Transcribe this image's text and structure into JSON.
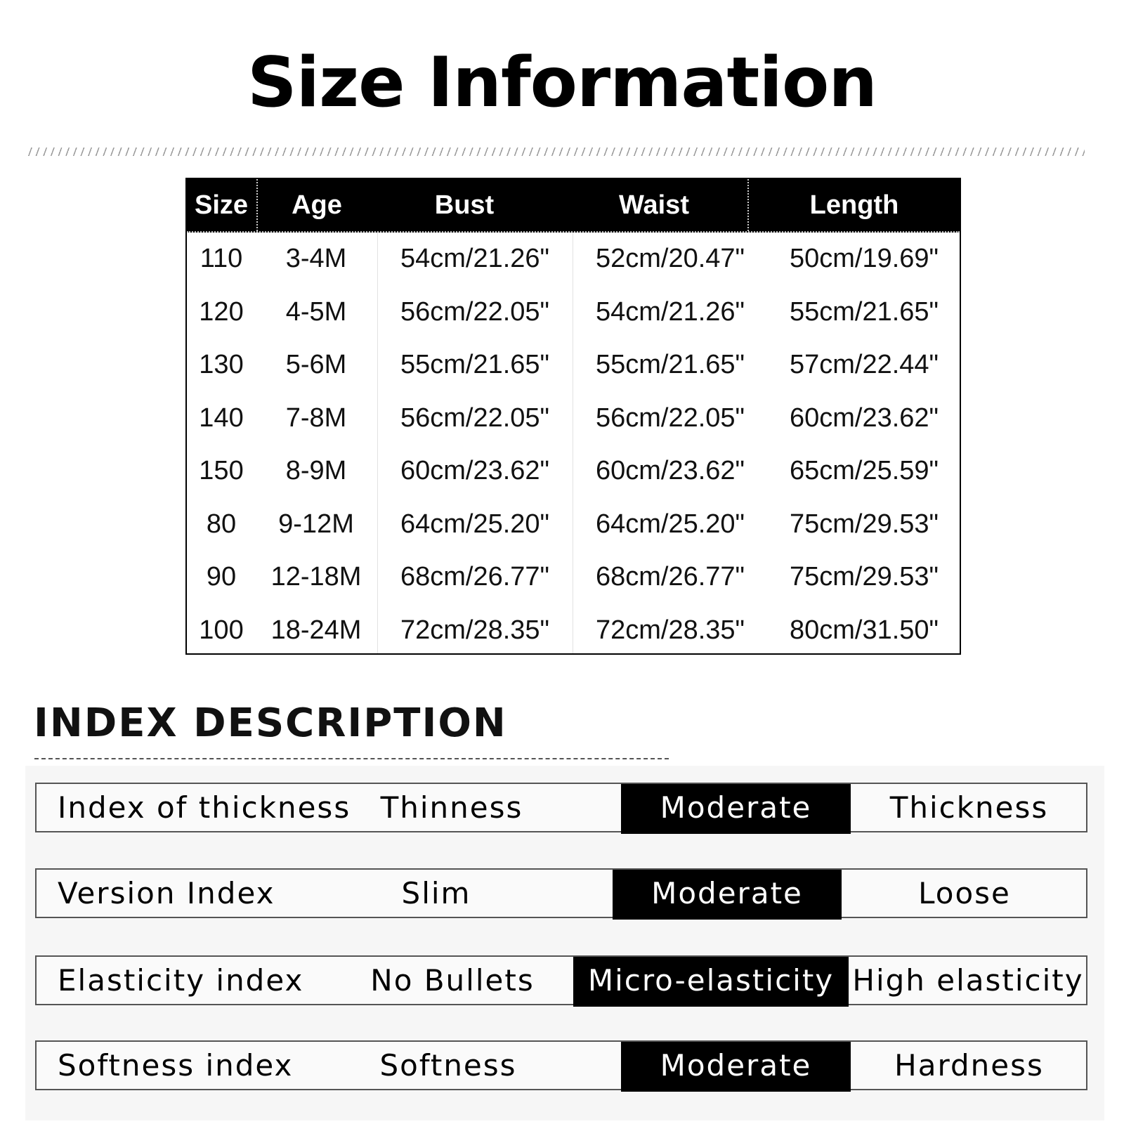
{
  "title": "Size Information",
  "size_table": {
    "headers": [
      "Size",
      "Age",
      "Bust",
      "Waist",
      "Length"
    ],
    "rows": [
      [
        "110",
        "3-4M",
        "54cm/21.26\"",
        "52cm/20.47\"",
        "50cm/19.69\""
      ],
      [
        "120",
        "4-5M",
        "56cm/22.05\"",
        "54cm/21.26\"",
        "55cm/21.65\""
      ],
      [
        "130",
        "5-6M",
        "55cm/21.65\"",
        "55cm/21.65\"",
        "57cm/22.44\""
      ],
      [
        "140",
        "7-8M",
        "56cm/22.05\"",
        "56cm/22.05\"",
        "60cm/23.62\""
      ],
      [
        "150",
        "8-9M",
        "60cm/23.62\"",
        "60cm/23.62\"",
        "65cm/25.59\""
      ],
      [
        "80",
        "9-12M",
        "64cm/25.20\"",
        "64cm/25.20\"",
        "75cm/29.53\""
      ],
      [
        "90",
        "12-18M",
        "68cm/26.77\"",
        "68cm/26.77\"",
        "75cm/29.53\""
      ],
      [
        "100",
        "18-24M",
        "72cm/28.35\"",
        "72cm/28.35\"",
        "80cm/31.50\""
      ]
    ]
  },
  "index": {
    "title": "INDEX DESCRIPTION",
    "rows": [
      {
        "label": "Index of thickness",
        "options": [
          "Thinness",
          "Moderate",
          "Thickness"
        ],
        "selected": 1
      },
      {
        "label": "Version Index",
        "options": [
          "Slim",
          "Moderate",
          "Loose"
        ],
        "selected": 1
      },
      {
        "label": "Elasticity index",
        "options": [
          "No Bullets",
          "Micro-elasticity",
          "High elasticity"
        ],
        "selected": 1
      },
      {
        "label": "Softness index",
        "options": [
          "Softness",
          "Moderate",
          "Hardness"
        ],
        "selected": 1
      }
    ]
  },
  "colors": {
    "header_bg": "#000000",
    "selected_bg": "#000000",
    "panel_bg": "#f6f6f6"
  }
}
